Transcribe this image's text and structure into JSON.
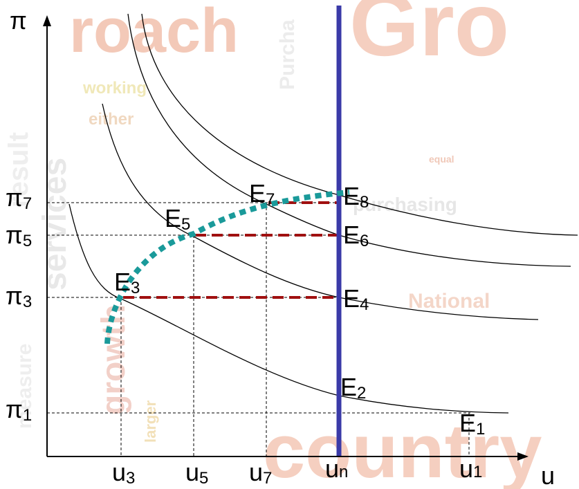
{
  "axes": {
    "y": "π",
    "x": "u"
  },
  "points": [
    {
      "base": "E",
      "sub": "1"
    },
    {
      "base": "E",
      "sub": "2"
    },
    {
      "base": "E",
      "sub": "3"
    },
    {
      "base": "E",
      "sub": "4"
    },
    {
      "base": "E",
      "sub": "5"
    },
    {
      "base": "E",
      "sub": "6"
    },
    {
      "base": "E",
      "sub": "7"
    },
    {
      "base": "E",
      "sub": "8"
    }
  ],
  "y_labels": [
    {
      "base": "π",
      "sub": "7"
    },
    {
      "base": "π",
      "sub": "5"
    },
    {
      "base": "π",
      "sub": "3"
    },
    {
      "base": "π",
      "sub": "1"
    }
  ],
  "x_labels": [
    {
      "base": "u",
      "sub": "3"
    },
    {
      "base": "u",
      "sub": "5"
    },
    {
      "base": "u",
      "sub": "7"
    },
    {
      "base": "u",
      "sub": "n"
    },
    {
      "base": "u",
      "sub": "1"
    }
  ],
  "background_words": [
    "roach",
    "Gro",
    "country",
    "purchasing",
    "working",
    "either",
    "National",
    "Purcha",
    "result",
    "services",
    "growth",
    "measure",
    "larger",
    "equal"
  ]
}
